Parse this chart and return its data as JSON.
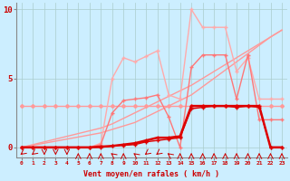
{
  "x": [
    0,
    1,
    2,
    3,
    4,
    5,
    6,
    7,
    8,
    9,
    10,
    11,
    12,
    13,
    14,
    15,
    16,
    17,
    18,
    19,
    20,
    21,
    22,
    23
  ],
  "bg_color": "#cceeff",
  "grid_color": "#aacccc",
  "ylabel_ticks": [
    0,
    5,
    10
  ],
  "xlabel": "Vent moyen/en rafales ( km/h )",
  "xlim": [
    -0.5,
    23.5
  ],
  "ylim": [
    -0.7,
    10.5
  ],
  "line_flat": {
    "y": [
      3.0,
      3.0,
      3.0,
      3.0,
      3.0,
      3.0,
      3.0,
      3.0,
      3.0,
      3.0,
      3.0,
      3.0,
      3.0,
      3.0,
      3.0,
      3.0,
      3.0,
      3.0,
      3.0,
      3.0,
      3.0,
      3.0,
      3.0,
      3.0
    ],
    "color": "#ff9999",
    "lw": 1.0,
    "marker": "D",
    "ms": 2.0
  },
  "line_linear1": {
    "y": [
      0.0,
      0.15,
      0.3,
      0.45,
      0.6,
      0.75,
      0.9,
      1.05,
      1.3,
      1.55,
      1.8,
      2.2,
      2.6,
      3.0,
      3.4,
      3.8,
      4.4,
      5.0,
      5.6,
      6.2,
      6.8,
      7.4,
      8.0,
      8.5
    ],
    "color": "#ff9999",
    "lw": 1.0
  },
  "line_linear2": {
    "y": [
      0.0,
      0.2,
      0.4,
      0.6,
      0.8,
      1.0,
      1.2,
      1.4,
      1.7,
      2.1,
      2.5,
      2.9,
      3.3,
      3.7,
      4.1,
      4.5,
      5.0,
      5.5,
      6.0,
      6.5,
      7.0,
      7.5,
      8.0,
      8.5
    ],
    "color": "#ff9999",
    "lw": 1.0
  },
  "line_spiky": {
    "y": [
      0.0,
      0.0,
      0.0,
      0.0,
      0.0,
      0.0,
      0.0,
      0.3,
      5.0,
      6.5,
      6.2,
      6.6,
      7.0,
      3.8,
      3.5,
      10.0,
      8.7,
      8.7,
      8.7,
      5.5,
      6.5,
      3.5,
      3.5,
      3.5
    ],
    "color": "#ffaaaa",
    "lw": 1.0,
    "marker": "+",
    "ms": 3
  },
  "line_med": {
    "y": [
      0.0,
      0.0,
      0.0,
      0.0,
      0.0,
      0.0,
      0.0,
      0.2,
      2.5,
      3.4,
      3.5,
      3.6,
      3.8,
      2.2,
      0.0,
      5.8,
      6.7,
      6.7,
      6.7,
      3.5,
      6.7,
      2.0,
      2.0,
      2.0
    ],
    "color": "#ff7777",
    "lw": 1.0,
    "marker": "+",
    "ms": 3
  },
  "line_dark1": {
    "y": [
      0.0,
      0.0,
      0.0,
      0.0,
      0.0,
      0.0,
      0.0,
      0.05,
      0.1,
      0.2,
      0.3,
      0.5,
      0.7,
      0.7,
      0.8,
      3.0,
      3.0,
      3.0,
      3.0,
      3.0,
      3.0,
      3.0,
      0.0,
      0.0
    ],
    "color": "#dd0000",
    "lw": 1.8,
    "marker": "+",
    "ms": 3
  },
  "line_dark2": {
    "y": [
      0.0,
      0.0,
      0.0,
      0.0,
      0.0,
      0.0,
      0.0,
      0.0,
      0.1,
      0.15,
      0.2,
      0.4,
      0.5,
      0.6,
      0.7,
      2.8,
      2.9,
      3.0,
      3.0,
      2.9,
      3.0,
      2.9,
      0.0,
      0.0
    ],
    "color": "#dd0000",
    "lw": 1.0,
    "marker": "+",
    "ms": 3
  },
  "title_color": "#cc0000",
  "arrow_color": "#cc0000"
}
